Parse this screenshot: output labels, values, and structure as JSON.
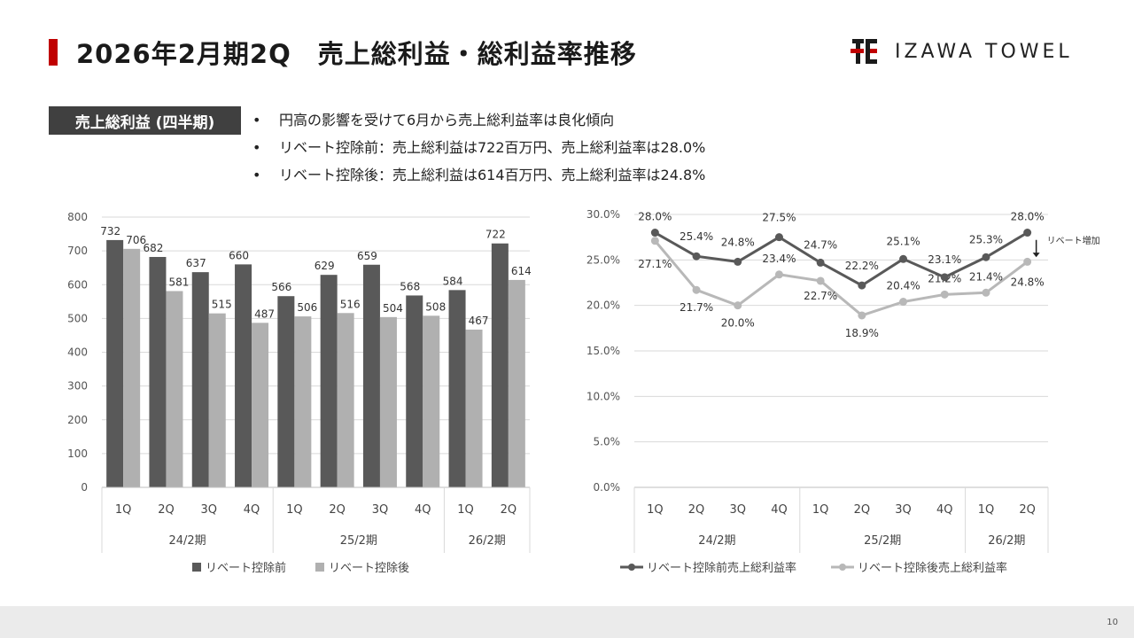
{
  "header": {
    "title": "2026年2月期2Q　売上総利益・総利益率推移",
    "logo_text": "IZAWA TOWEL",
    "accent_color": "#c00000"
  },
  "section_label": "売上総利益 (四半期)",
  "bullets": [
    "円高の影響を受けて6月から売上総利益率は良化傾向",
    "リベート控除前：売上総利益は722百万円、売上総利益率は28.0%",
    "リベート控除後：売上総利益は614百万円、売上総利益率は24.8%"
  ],
  "chart_data": [
    {
      "type": "bar",
      "categories": [
        "1Q",
        "2Q",
        "3Q",
        "4Q",
        "1Q",
        "2Q",
        "3Q",
        "4Q",
        "1Q",
        "2Q"
      ],
      "groups": [
        {
          "label": "24/2期",
          "count": 4
        },
        {
          "label": "25/2期",
          "count": 4
        },
        {
          "label": "26/2期",
          "count": 2
        }
      ],
      "series": [
        {
          "name": "リベート控除前",
          "color": "#595959",
          "values": [
            732,
            682,
            637,
            660,
            566,
            629,
            659,
            568,
            584,
            722
          ]
        },
        {
          "name": "リベート控除後",
          "color": "#b0b0b0",
          "values": [
            706,
            581,
            515,
            487,
            506,
            516,
            504,
            508,
            467,
            614
          ]
        }
      ],
      "ylim": [
        0,
        800
      ],
      "yticks": [
        0,
        100,
        200,
        300,
        400,
        500,
        600,
        700,
        800
      ],
      "grid": true,
      "legend": "bottom"
    },
    {
      "type": "line",
      "categories": [
        "1Q",
        "2Q",
        "3Q",
        "4Q",
        "1Q",
        "2Q",
        "3Q",
        "4Q",
        "1Q",
        "2Q"
      ],
      "groups": [
        {
          "label": "24/2期",
          "count": 4
        },
        {
          "label": "25/2期",
          "count": 4
        },
        {
          "label": "26/2期",
          "count": 2
        }
      ],
      "series": [
        {
          "name": "リベート控除前売上総利益率",
          "color": "#595959",
          "values": [
            28.0,
            25.4,
            24.8,
            27.5,
            24.7,
            22.2,
            25.1,
            23.1,
            25.3,
            28.0
          ],
          "labels": [
            "28.0%",
            "25.4%",
            "24.8%",
            "27.5%",
            "24.7%",
            "22.2%",
            "25.1%",
            "23.1%",
            "25.3%",
            "28.0%"
          ]
        },
        {
          "name": "リベート控除後売上総利益率",
          "color": "#b8b8b8",
          "values": [
            27.1,
            21.7,
            20.0,
            23.4,
            22.7,
            18.9,
            20.4,
            21.2,
            21.4,
            24.8
          ],
          "labels": [
            "27.1%",
            "21.7%",
            "20.0%",
            "23.4%",
            "22.7%",
            "18.9%",
            "20.4%",
            "21.2%",
            "21.4%",
            "24.8%"
          ]
        }
      ],
      "ylim": [
        0,
        30
      ],
      "yticks": [
        "0.0%",
        "5.0%",
        "10.0%",
        "15.0%",
        "20.0%",
        "25.0%",
        "30.0%"
      ],
      "annotation": "リベート増加",
      "grid": true,
      "legend": "bottom"
    }
  ],
  "page_number": "10"
}
